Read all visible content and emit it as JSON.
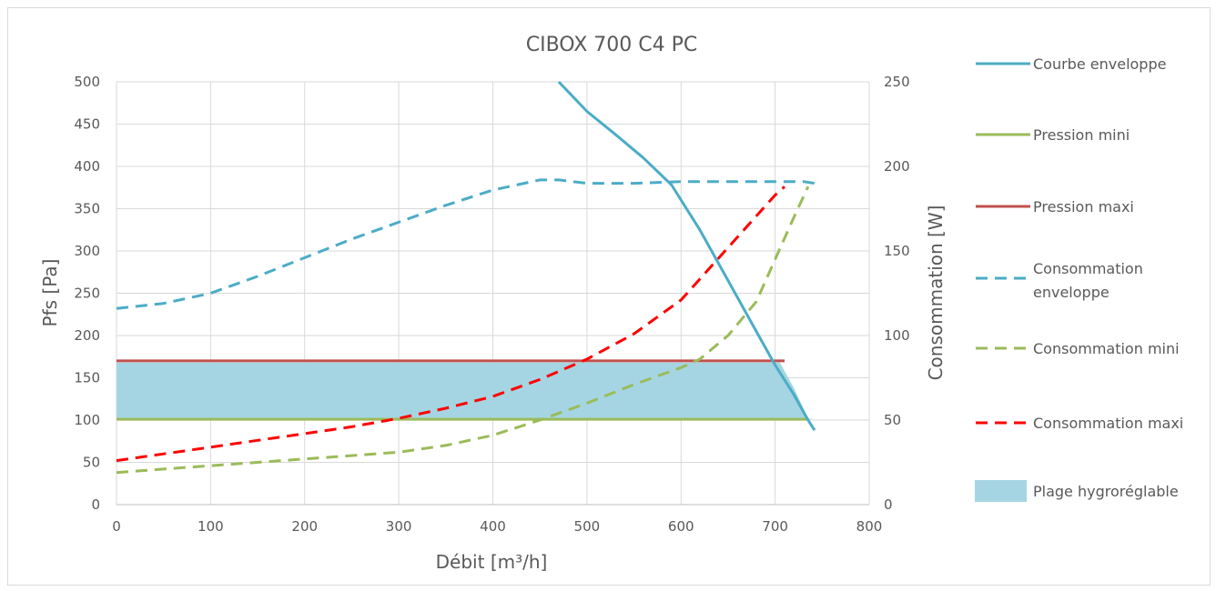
{
  "chart_data": {
    "type": "line",
    "title": "CIBOX 700 C4 PC",
    "xlabel": "Débit [m³/h]",
    "ylabel": "Pfs [Pa]",
    "y2label": "Consommation [W]",
    "xlim": [
      0,
      800
    ],
    "xticks": [
      0,
      100,
      200,
      300,
      400,
      500,
      600,
      700,
      800
    ],
    "ylim": [
      0,
      500
    ],
    "yticks": [
      0,
      50,
      100,
      150,
      200,
      250,
      300,
      350,
      400,
      450,
      500
    ],
    "y2lim": [
      0,
      250
    ],
    "y2ticks": [
      0,
      50,
      100,
      150,
      200,
      250
    ],
    "grid": true,
    "legend_position": "right",
    "series": [
      {
        "name": "Courbe enveloppe",
        "axis": "left",
        "style": "solid",
        "color": "#4bacc6",
        "x": [
          470,
          500,
          530,
          560,
          590,
          620,
          650,
          680,
          700,
          720,
          735,
          742
        ],
        "y": [
          500,
          465,
          438,
          410,
          378,
          325,
          265,
          205,
          165,
          130,
          100,
          88
        ]
      },
      {
        "name": "Pression mini",
        "axis": "left",
        "style": "solid",
        "color": "#9bbb59",
        "x": [
          0,
          700,
          735
        ],
        "y": [
          101,
          101,
          101
        ]
      },
      {
        "name": "Pression maxi",
        "axis": "left",
        "style": "solid",
        "color": "#c0504d",
        "x": [
          0,
          710
        ],
        "y": [
          170,
          170
        ]
      },
      {
        "name": "Consommation enveloppe",
        "axis": "right",
        "style": "dashed",
        "color": "#4bacc6",
        "x": [
          0,
          50,
          100,
          150,
          200,
          250,
          300,
          350,
          400,
          450,
          470,
          500,
          550,
          600,
          650,
          700,
          730,
          742
        ],
        "y": [
          116,
          119,
          125,
          135,
          146,
          157,
          167,
          177,
          186,
          192,
          192,
          190,
          190,
          191,
          191,
          191,
          191,
          190
        ]
      },
      {
        "name": "Consommation mini",
        "axis": "right",
        "style": "dashed",
        "color": "#9bbb59",
        "x": [
          0,
          50,
          100,
          150,
          200,
          250,
          300,
          350,
          400,
          450,
          500,
          550,
          600,
          620,
          650,
          680,
          700,
          720,
          735
        ],
        "y": [
          19,
          21,
          23,
          25,
          27,
          29,
          31,
          35,
          41,
          50,
          60,
          71,
          81,
          86,
          100,
          120,
          145,
          170,
          188
        ]
      },
      {
        "name": "Consommation maxi",
        "axis": "right",
        "style": "dashed",
        "color": "#ff0000",
        "x": [
          0,
          50,
          100,
          150,
          200,
          250,
          300,
          350,
          400,
          450,
          500,
          550,
          600,
          650,
          700,
          710
        ],
        "y": [
          26,
          30,
          34,
          38,
          42,
          46,
          51,
          57,
          64,
          74,
          86,
          101,
          121,
          152,
          183,
          188
        ]
      },
      {
        "name": "Plage hygroréglable",
        "axis": "left",
        "style": "band",
        "color": "#a5d5e2",
        "x": [
          0,
          705,
          720,
          735,
          742
        ],
        "y_low": [
          101,
          101,
          101,
          101,
          101
        ],
        "y_high": [
          168,
          168,
          138,
          102,
          101
        ]
      }
    ]
  }
}
